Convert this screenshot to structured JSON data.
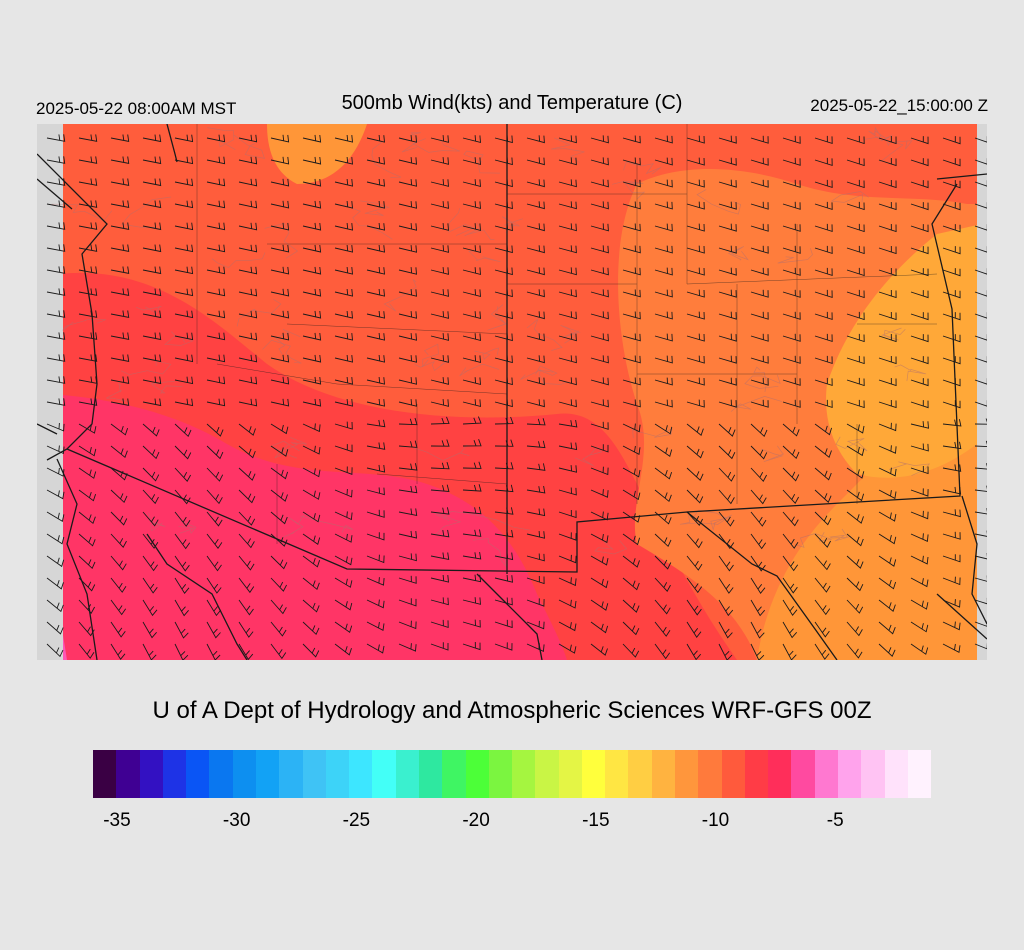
{
  "header": {
    "local_time": "2025-05-22 08:00AM MST",
    "title": "500mb Wind(kts) and Temperature (C)",
    "valid_time": "2025-05-22_15:00:00 Z"
  },
  "footer": {
    "credit": "U of A Dept of Hydrology and Atmospheric Sciences WRF-GFS 00Z"
  },
  "legend": {
    "min": -36,
    "max": -1,
    "colors": [
      "#3a0044",
      "#3f0093",
      "#3311c2",
      "#1e33e6",
      "#0a55f5",
      "#0a77f0",
      "#0d8ff0",
      "#12a2f5",
      "#2cb3f5",
      "#3fc3f5",
      "#3dd3f8",
      "#3de6ff",
      "#43fff7",
      "#3af0cf",
      "#2ee8a0",
      "#3ff563",
      "#4cff38",
      "#7bf540",
      "#a5f540",
      "#c9f545",
      "#e4f545",
      "#ffff3c",
      "#ffe643",
      "#ffce43",
      "#ffb340",
      "#ff963c",
      "#ff7a3c",
      "#ff5a3c",
      "#ff3c46",
      "#ff2e5a",
      "#ff4aa0",
      "#ff78d0",
      "#ffa3ec",
      "#ffc3f3",
      "#ffe2fb",
      "#fff2fe"
    ],
    "ticks": [
      {
        "label": "-35",
        "value": -35
      },
      {
        "label": "-30",
        "value": -30
      },
      {
        "label": "-25",
        "value": -25
      },
      {
        "label": "-20",
        "value": -20
      },
      {
        "label": "-15",
        "value": -15
      },
      {
        "label": "-10",
        "value": -10
      },
      {
        "label": "-5",
        "value": -5
      }
    ]
  },
  "map": {
    "field_colors": {
      "cold_pink": "#ff3566",
      "red": "#ff4242",
      "orange_red": "#ff5d3c",
      "orange": "#ff7d3c",
      "light_orange": "#ff9638",
      "amber": "#ffa838",
      "hot_pink": "#ff55b4",
      "boundary": "#1a1a1a",
      "contour": "#b07070",
      "wind_barb": "#1a1a1a"
    }
  }
}
